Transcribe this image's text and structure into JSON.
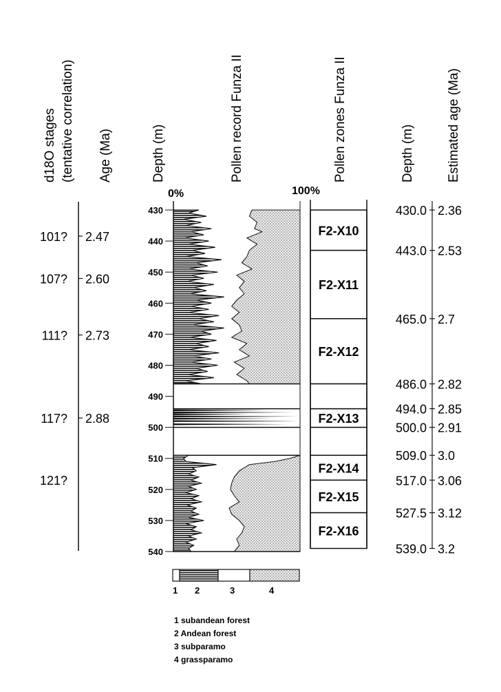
{
  "headers": {
    "d18o": [
      "d18O stages",
      "(tentative  correlation)"
    ],
    "age": "Age (Ma)",
    "depth_left": "Depth (m)",
    "pollen_record": "Pollen record Funza II",
    "pollen_zones": "Pollen  zones Funza II",
    "depth_right": "Depth (m)",
    "estimated_age": "Estimated  age  (Ma)"
  },
  "percent_labels": {
    "left": "0%",
    "right": "100%"
  },
  "d18o_stages": [
    {
      "label": "101?",
      "age": 2.47
    },
    {
      "label": "107?",
      "age": 2.6
    },
    {
      "label": "111?",
      "age": 2.73
    },
    {
      "label": "117?",
      "age": 2.88
    },
    {
      "label": "121?",
      "age": null
    }
  ],
  "age_ticks": [
    "2.47",
    "2.60",
    "2.73",
    "2.88"
  ],
  "depth_axis": {
    "min": 430,
    "max": 540,
    "step": 10
  },
  "gaps": [
    [
      486,
      494
    ],
    [
      500,
      509
    ]
  ],
  "pollen_zones": [
    {
      "label": "F2-X10",
      "top": 430.0,
      "bottom": 443.0
    },
    {
      "label": "F2-X11",
      "top": 443.0,
      "bottom": 465.0
    },
    {
      "label": "F2-X12",
      "top": 465.0,
      "bottom": 486.0
    },
    {
      "label": "F2-X13",
      "top": 494.0,
      "bottom": 500.0
    },
    {
      "label": "F2-X14",
      "top": 509.0,
      "bottom": 517.0
    },
    {
      "label": "F2-X15",
      "top": 517.0,
      "bottom": 527.5
    },
    {
      "label": "F2-X16",
      "top": 527.5,
      "bottom": 539.0
    }
  ],
  "depth_age_table": [
    {
      "depth": "430.0",
      "age": "2.36"
    },
    {
      "depth": "443.0",
      "age": "2.53"
    },
    {
      "depth": "465.0",
      "age": "2.7"
    },
    {
      "depth": "486.0",
      "age": "2.82"
    },
    {
      "depth": "494.0",
      "age": "2.85"
    },
    {
      "depth": "500.0",
      "age": "2.91"
    },
    {
      "depth": "509.0",
      "age": "3.0"
    },
    {
      "depth": "517.0",
      "age": "3.06"
    },
    {
      "depth": "527.5",
      "age": "3.12"
    },
    {
      "depth": "539.0",
      "age": "3.2"
    }
  ],
  "pollen_record": {
    "boundary_andean": [
      [
        430,
        20
      ],
      [
        431,
        12
      ],
      [
        432,
        26
      ],
      [
        433,
        8
      ],
      [
        434,
        22
      ],
      [
        435,
        10
      ],
      [
        436,
        30
      ],
      [
        437,
        14
      ],
      [
        438,
        24
      ],
      [
        439,
        9
      ],
      [
        440,
        28
      ],
      [
        441,
        12
      ],
      [
        442,
        33
      ],
      [
        443,
        15
      ],
      [
        444,
        25
      ],
      [
        445,
        10
      ],
      [
        446,
        38
      ],
      [
        447,
        18
      ],
      [
        448,
        27
      ],
      [
        449,
        12
      ],
      [
        450,
        35
      ],
      [
        451,
        14
      ],
      [
        452,
        24
      ],
      [
        453,
        11
      ],
      [
        454,
        32
      ],
      [
        455,
        16
      ],
      [
        456,
        26
      ],
      [
        457,
        13
      ],
      [
        458,
        40
      ],
      [
        459,
        18
      ],
      [
        460,
        30
      ],
      [
        461,
        14
      ],
      [
        462,
        28
      ],
      [
        463,
        12
      ],
      [
        464,
        36
      ],
      [
        465,
        20
      ],
      [
        466,
        32
      ],
      [
        467,
        15
      ],
      [
        468,
        40
      ],
      [
        469,
        22
      ],
      [
        470,
        30
      ],
      [
        471,
        13
      ],
      [
        472,
        34
      ],
      [
        473,
        18
      ],
      [
        474,
        28
      ],
      [
        475,
        12
      ],
      [
        476,
        36
      ],
      [
        477,
        16
      ],
      [
        478,
        30
      ],
      [
        479,
        14
      ],
      [
        480,
        35
      ],
      [
        481,
        18
      ],
      [
        482,
        27
      ],
      [
        483,
        12
      ],
      [
        484,
        32
      ],
      [
        485,
        10
      ],
      [
        486,
        22
      ]
    ],
    "boundary_grass": [
      [
        430,
        62
      ],
      [
        432,
        60
      ],
      [
        434,
        66
      ],
      [
        436,
        64
      ],
      [
        437,
        70
      ],
      [
        439,
        58
      ],
      [
        441,
        66
      ],
      [
        443,
        60
      ],
      [
        445,
        58
      ],
      [
        447,
        54
      ],
      [
        449,
        62
      ],
      [
        451,
        50
      ],
      [
        453,
        56
      ],
      [
        455,
        52
      ],
      [
        457,
        56
      ],
      [
        459,
        50
      ],
      [
        461,
        46
      ],
      [
        463,
        52
      ],
      [
        465,
        46
      ],
      [
        467,
        52
      ],
      [
        469,
        54
      ],
      [
        471,
        46
      ],
      [
        473,
        58
      ],
      [
        475,
        52
      ],
      [
        477,
        60
      ],
      [
        479,
        48
      ],
      [
        481,
        56
      ],
      [
        483,
        50
      ],
      [
        485,
        58
      ],
      [
        486,
        60
      ]
    ],
    "lower_boundary_andean": [
      [
        509,
        12
      ],
      [
        510,
        8
      ],
      [
        511,
        10
      ],
      [
        512,
        34
      ],
      [
        513,
        15
      ],
      [
        514,
        18
      ],
      [
        515,
        12
      ],
      [
        516,
        20
      ],
      [
        517,
        14
      ],
      [
        518,
        22
      ],
      [
        519,
        12
      ],
      [
        520,
        18
      ],
      [
        521,
        10
      ],
      [
        522,
        20
      ],
      [
        523,
        14
      ],
      [
        524,
        22
      ],
      [
        525,
        11
      ],
      [
        526,
        18
      ],
      [
        527,
        14
      ],
      [
        528,
        20
      ],
      [
        529,
        12
      ],
      [
        530,
        24
      ],
      [
        531,
        10
      ],
      [
        532,
        18
      ],
      [
        533,
        14
      ],
      [
        534,
        22
      ],
      [
        535,
        12
      ],
      [
        536,
        18
      ],
      [
        537,
        10
      ],
      [
        538,
        16
      ],
      [
        539,
        12
      ],
      [
        540,
        14
      ]
    ],
    "lower_boundary_grass": [
      [
        509,
        100
      ],
      [
        510,
        92
      ],
      [
        511,
        80
      ],
      [
        512,
        60
      ],
      [
        514,
        52
      ],
      [
        516,
        48
      ],
      [
        518,
        46
      ],
      [
        520,
        45
      ],
      [
        522,
        48
      ],
      [
        524,
        52
      ],
      [
        526,
        44
      ],
      [
        528,
        46
      ],
      [
        530,
        52
      ],
      [
        532,
        56
      ],
      [
        534,
        54
      ],
      [
        536,
        50
      ],
      [
        538,
        52
      ],
      [
        540,
        48
      ]
    ]
  },
  "legend": {
    "numbers": [
      "1",
      "2",
      "3",
      "4"
    ],
    "items": [
      "1 subandean forest",
      "2 Andean forest",
      "3 subparamo",
      "4 grassparamo"
    ]
  }
}
